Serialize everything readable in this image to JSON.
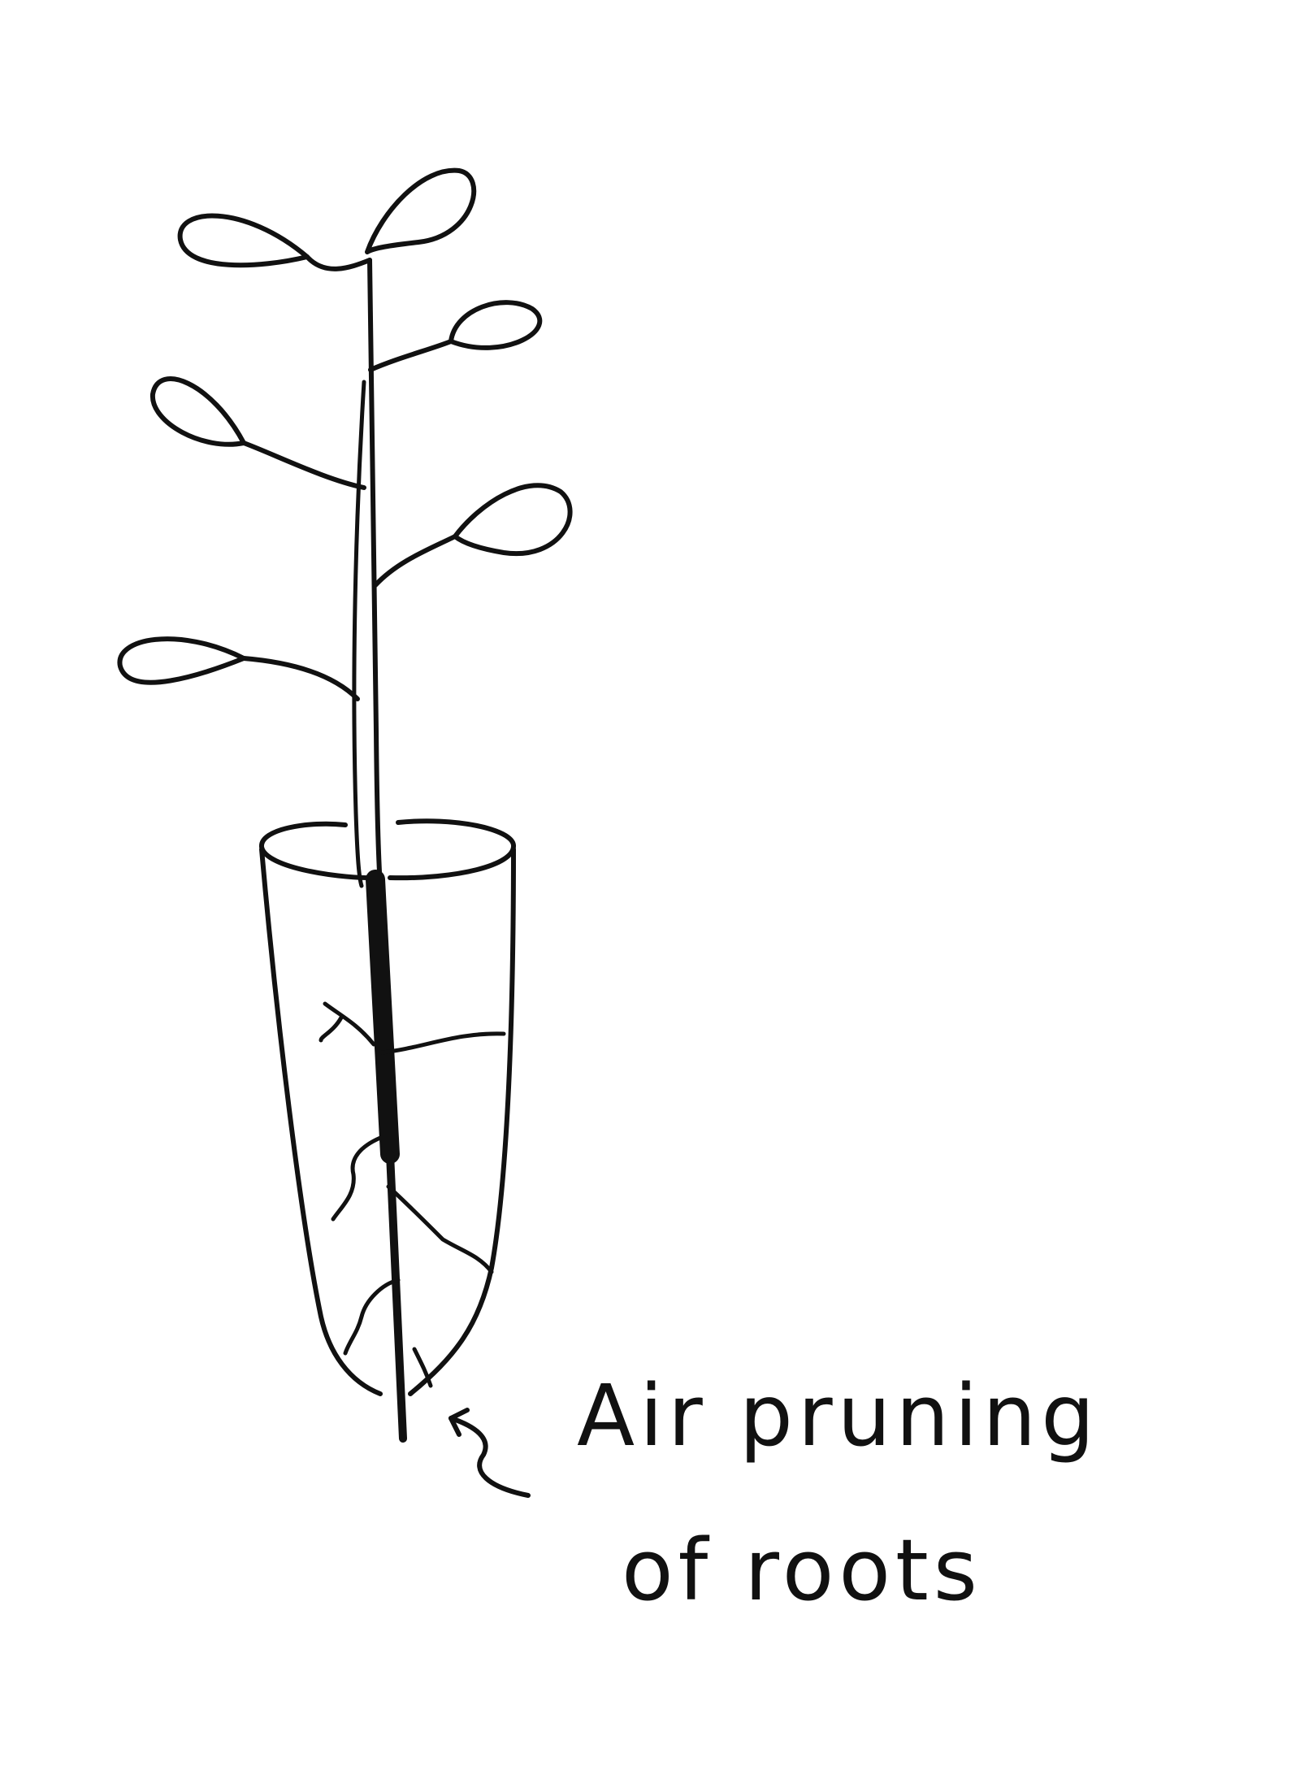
{
  "diagram": {
    "annotation": {
      "line1": "Air pruning",
      "line2": "of roots"
    },
    "colors": {
      "ink": "#111111",
      "paper": "#ffffff"
    },
    "icons": [
      "seedling",
      "container-pot",
      "root-system",
      "curved-arrow"
    ]
  }
}
